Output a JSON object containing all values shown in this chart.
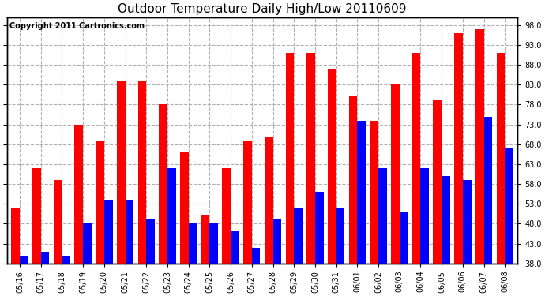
{
  "title": "Outdoor Temperature Daily High/Low 20110609",
  "copyright": "Copyright 2011 Cartronics.com",
  "dates": [
    "05/16",
    "05/17",
    "05/18",
    "05/19",
    "05/20",
    "05/21",
    "05/22",
    "05/23",
    "05/24",
    "05/25",
    "05/26",
    "05/27",
    "05/28",
    "05/29",
    "05/30",
    "05/31",
    "06/01",
    "06/02",
    "06/03",
    "06/04",
    "06/05",
    "06/06",
    "06/07",
    "06/08"
  ],
  "highs": [
    52,
    62,
    59,
    73,
    69,
    84,
    84,
    78,
    66,
    50,
    62,
    69,
    70,
    91,
    91,
    87,
    80,
    74,
    83,
    91,
    79,
    96,
    97,
    91
  ],
  "lows": [
    40,
    41,
    40,
    48,
    54,
    54,
    49,
    62,
    48,
    48,
    46,
    42,
    49,
    52,
    56,
    52,
    74,
    62,
    51,
    62,
    60,
    59,
    75,
    67
  ],
  "high_color": "#ff0000",
  "low_color": "#0000ff",
  "bg_color": "#ffffff",
  "grid_color": "#b0b0b0",
  "ymin": 38,
  "ymax": 100,
  "yticks": [
    38,
    43,
    48,
    53,
    58,
    63,
    68,
    73,
    78,
    83,
    88,
    93,
    98
  ],
  "ytick_labels": [
    "38.0",
    "43.0",
    "48.0",
    "53.0",
    "58.0",
    "63.0",
    "68.0",
    "73.0",
    "78.0",
    "83.0",
    "88.0",
    "93.0",
    "98.0"
  ],
  "title_fontsize": 11,
  "copyright_fontsize": 7,
  "tick_fontsize": 7,
  "bar_width": 0.4
}
